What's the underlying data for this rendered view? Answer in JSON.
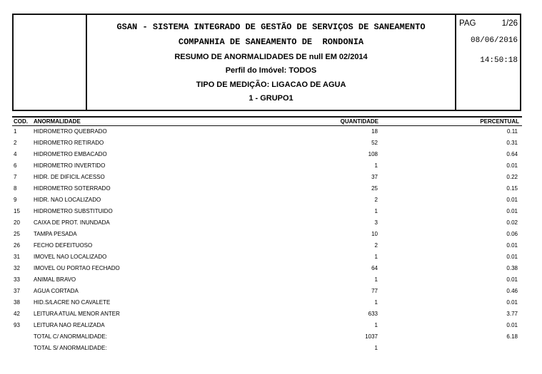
{
  "page": {
    "background_color": "#ffffff",
    "text_color": "#000000",
    "line_color": "#121212"
  },
  "header": {
    "org_line1": "GSAN - SISTEMA INTEGRADO DE GESTÃO DE SERVIÇOS DE SANEAMENTO",
    "org_line2": "COMPANHIA DE SANEAMENTO DE  RONDONIA",
    "report_title": "RESUMO DE ANORMALIDADES DE null EM 02/2014",
    "profile": "Perfil do Imóvel: TODOS",
    "measurement_type": "TIPO DE MEDIÇÃO: LIGACAO DE AGUA",
    "group": "1 - GRUPO1",
    "page_label": "PAG",
    "page_value": "1/26",
    "date": "08/06/2016",
    "time": "14:50:18"
  },
  "table": {
    "columns": {
      "cod": "COD.",
      "anormalidade": "ANORMALIDADE",
      "quantidade": "QUANTIDADE",
      "percentual": "PERCENTUAL"
    },
    "rows": [
      {
        "cod": "1",
        "anormalidade": "HIDROMETRO QUEBRADO",
        "quantidade": "18",
        "percentual": "0.11"
      },
      {
        "cod": "2",
        "anormalidade": "HIDROMETRO RETIRADO",
        "quantidade": "52",
        "percentual": "0.31"
      },
      {
        "cod": "4",
        "anormalidade": "HIDROMETRO EMBACADO",
        "quantidade": "108",
        "percentual": "0.64"
      },
      {
        "cod": "6",
        "anormalidade": "HIDROMETRO INVERTIDO",
        "quantidade": "1",
        "percentual": "0.01"
      },
      {
        "cod": "7",
        "anormalidade": "HIDR. DE DIFICIL ACESSO",
        "quantidade": "37",
        "percentual": "0.22"
      },
      {
        "cod": "8",
        "anormalidade": "HIDROMETRO SOTERRADO",
        "quantidade": "25",
        "percentual": "0.15"
      },
      {
        "cod": "9",
        "anormalidade": "HIDR. NAO LOCALIZADO",
        "quantidade": "2",
        "percentual": "0.01"
      },
      {
        "cod": "15",
        "anormalidade": "HIDROMETRO SUBSTITUIDO",
        "quantidade": "1",
        "percentual": "0.01"
      },
      {
        "cod": "20",
        "anormalidade": "CAIXA DE PROT. INUNDADA",
        "quantidade": "3",
        "percentual": "0.02"
      },
      {
        "cod": "25",
        "anormalidade": "TAMPA PESADA",
        "quantidade": "10",
        "percentual": "0.06"
      },
      {
        "cod": "26",
        "anormalidade": "FECHO DEFEITUOSO",
        "quantidade": "2",
        "percentual": "0.01"
      },
      {
        "cod": "31",
        "anormalidade": "IMOVEL NAO LOCALIZADO",
        "quantidade": "1",
        "percentual": "0.01"
      },
      {
        "cod": "32",
        "anormalidade": "IMOVEL OU PORTAO FECHADO",
        "quantidade": "64",
        "percentual": "0.38"
      },
      {
        "cod": "33",
        "anormalidade": "ANIMAL BRAVO",
        "quantidade": "1",
        "percentual": "0.01"
      },
      {
        "cod": "37",
        "anormalidade": "AGUA CORTADA",
        "quantidade": "77",
        "percentual": "0.46"
      },
      {
        "cod": "38",
        "anormalidade": "HID.S/LACRE NO CAVALETE",
        "quantidade": "1",
        "percentual": "0.01"
      },
      {
        "cod": "42",
        "anormalidade": "LEITURA ATUAL MENOR ANTER",
        "quantidade": "633",
        "percentual": "3.77"
      },
      {
        "cod": "93",
        "anormalidade": "LEITURA NAO REALIZADA",
        "quantidade": "1",
        "percentual": "0.01"
      },
      {
        "cod": "",
        "anormalidade": "TOTAL C/ ANORMALIDADE:",
        "quantidade": "1037",
        "percentual": "6.18"
      },
      {
        "cod": "",
        "anormalidade": "TOTAL S/ ANORMALIDADE:",
        "quantidade": "1",
        "percentual": ""
      }
    ]
  }
}
